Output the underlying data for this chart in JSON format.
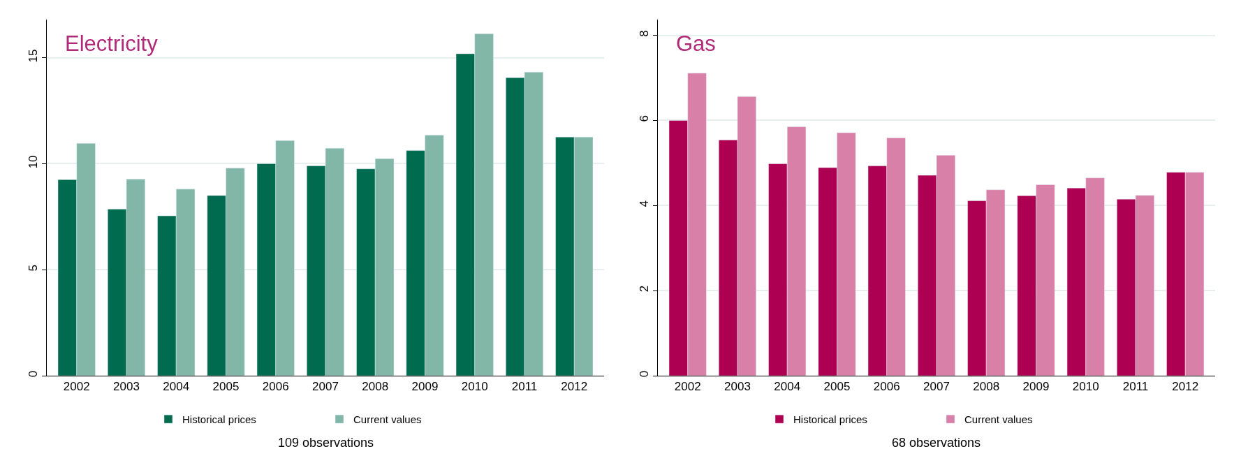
{
  "chart_data": [
    {
      "type": "bar",
      "title": "Electricity",
      "categories": [
        "2002",
        "2003",
        "2004",
        "2005",
        "2006",
        "2007",
        "2008",
        "2009",
        "2010",
        "2011",
        "2012"
      ],
      "series": [
        {
          "name": "Historical prices",
          "color": "#006b4e",
          "values": [
            9.25,
            7.86,
            7.54,
            8.5,
            10.0,
            9.9,
            9.76,
            10.62,
            15.19,
            14.06,
            11.26
          ]
        },
        {
          "name": "Current values",
          "color": "#82b6a6",
          "values": [
            10.96,
            9.27,
            8.8,
            9.79,
            11.09,
            10.73,
            10.24,
            11.35,
            16.13,
            14.32,
            11.26
          ]
        }
      ],
      "ylim": [
        0,
        16.8
      ],
      "yticks": [
        0,
        5,
        10,
        15
      ],
      "grid": "y",
      "legend": "bottom",
      "annotations": [
        "109 observations"
      ]
    },
    {
      "type": "bar",
      "title": "Gas",
      "categories": [
        "2002",
        "2003",
        "2004",
        "2005",
        "2006",
        "2007",
        "2008",
        "2009",
        "2010",
        "2011",
        "2012"
      ],
      "series": [
        {
          "name": "Historical prices",
          "color": "#ae0052",
          "values": [
            6.0,
            5.54,
            4.98,
            4.89,
            4.93,
            4.71,
            4.11,
            4.23,
            4.41,
            4.15,
            4.78
          ]
        },
        {
          "name": "Current values",
          "color": "#d880a8",
          "values": [
            7.11,
            6.56,
            5.85,
            5.71,
            5.59,
            5.18,
            4.37,
            4.49,
            4.65,
            4.24,
            4.78
          ]
        }
      ],
      "ylim": [
        0,
        8.37
      ],
      "yticks": [
        0,
        2,
        4,
        6,
        8
      ],
      "grid": "y",
      "legend": "bottom",
      "annotations": [
        "68 observations"
      ]
    }
  ]
}
